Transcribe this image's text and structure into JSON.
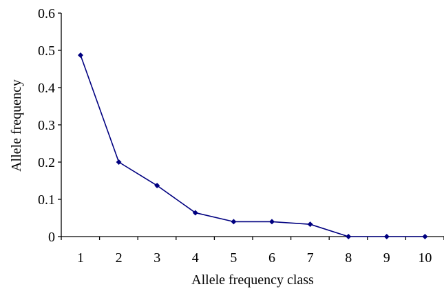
{
  "chart_data": {
    "type": "line",
    "title": "",
    "xlabel": "Allele frequency class",
    "ylabel": "Allele frequency",
    "categories": [
      "1",
      "2",
      "3",
      "4",
      "5",
      "6",
      "7",
      "8",
      "9",
      "10"
    ],
    "series": [
      {
        "values": [
          0.487,
          0.2,
          0.137,
          0.064,
          0.04,
          0.04,
          0.033,
          0.0,
          0.0,
          0.0
        ],
        "color": "#000080",
        "marker": "diamond"
      }
    ],
    "ylim": [
      0,
      0.6
    ],
    "yticks": [
      0,
      0.1,
      0.2,
      0.3,
      0.4,
      0.5,
      0.6
    ],
    "ytick_labels": [
      "0",
      "0.1",
      "0.2",
      "0.3",
      "0.4",
      "0.5",
      "0.6"
    ],
    "grid": false,
    "legend": "none"
  }
}
